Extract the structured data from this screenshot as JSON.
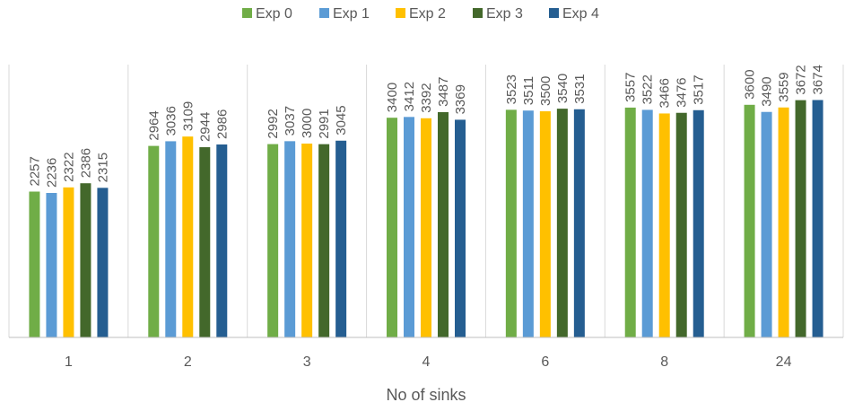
{
  "chart_data": {
    "type": "bar",
    "title": "",
    "xlabel": "No of sinks",
    "ylabel": "",
    "ylim": [
      0,
      4500
    ],
    "grid": false,
    "legend_position": "top",
    "categories": [
      "1",
      "2",
      "3",
      "4",
      "6",
      "8",
      "24"
    ],
    "series": [
      {
        "name": "Exp 0",
        "color": "#70ad47",
        "values": [
          2257,
          2964,
          2992,
          3400,
          3523,
          3557,
          3600
        ]
      },
      {
        "name": "Exp 1",
        "color": "#5b9bd5",
        "values": [
          2236,
          3036,
          3037,
          3412,
          3511,
          3522,
          3490
        ]
      },
      {
        "name": "Exp 2",
        "color": "#ffc000",
        "values": [
          2322,
          3109,
          3000,
          3392,
          3500,
          3466,
          3559
        ]
      },
      {
        "name": "Exp 3",
        "color": "#43682b",
        "values": [
          2386,
          2944,
          2991,
          3487,
          3540,
          3476,
          3672
        ]
      },
      {
        "name": "Exp 4",
        "color": "#255e91",
        "values": [
          2315,
          2986,
          3045,
          3369,
          3531,
          3517,
          3674
        ]
      }
    ]
  }
}
